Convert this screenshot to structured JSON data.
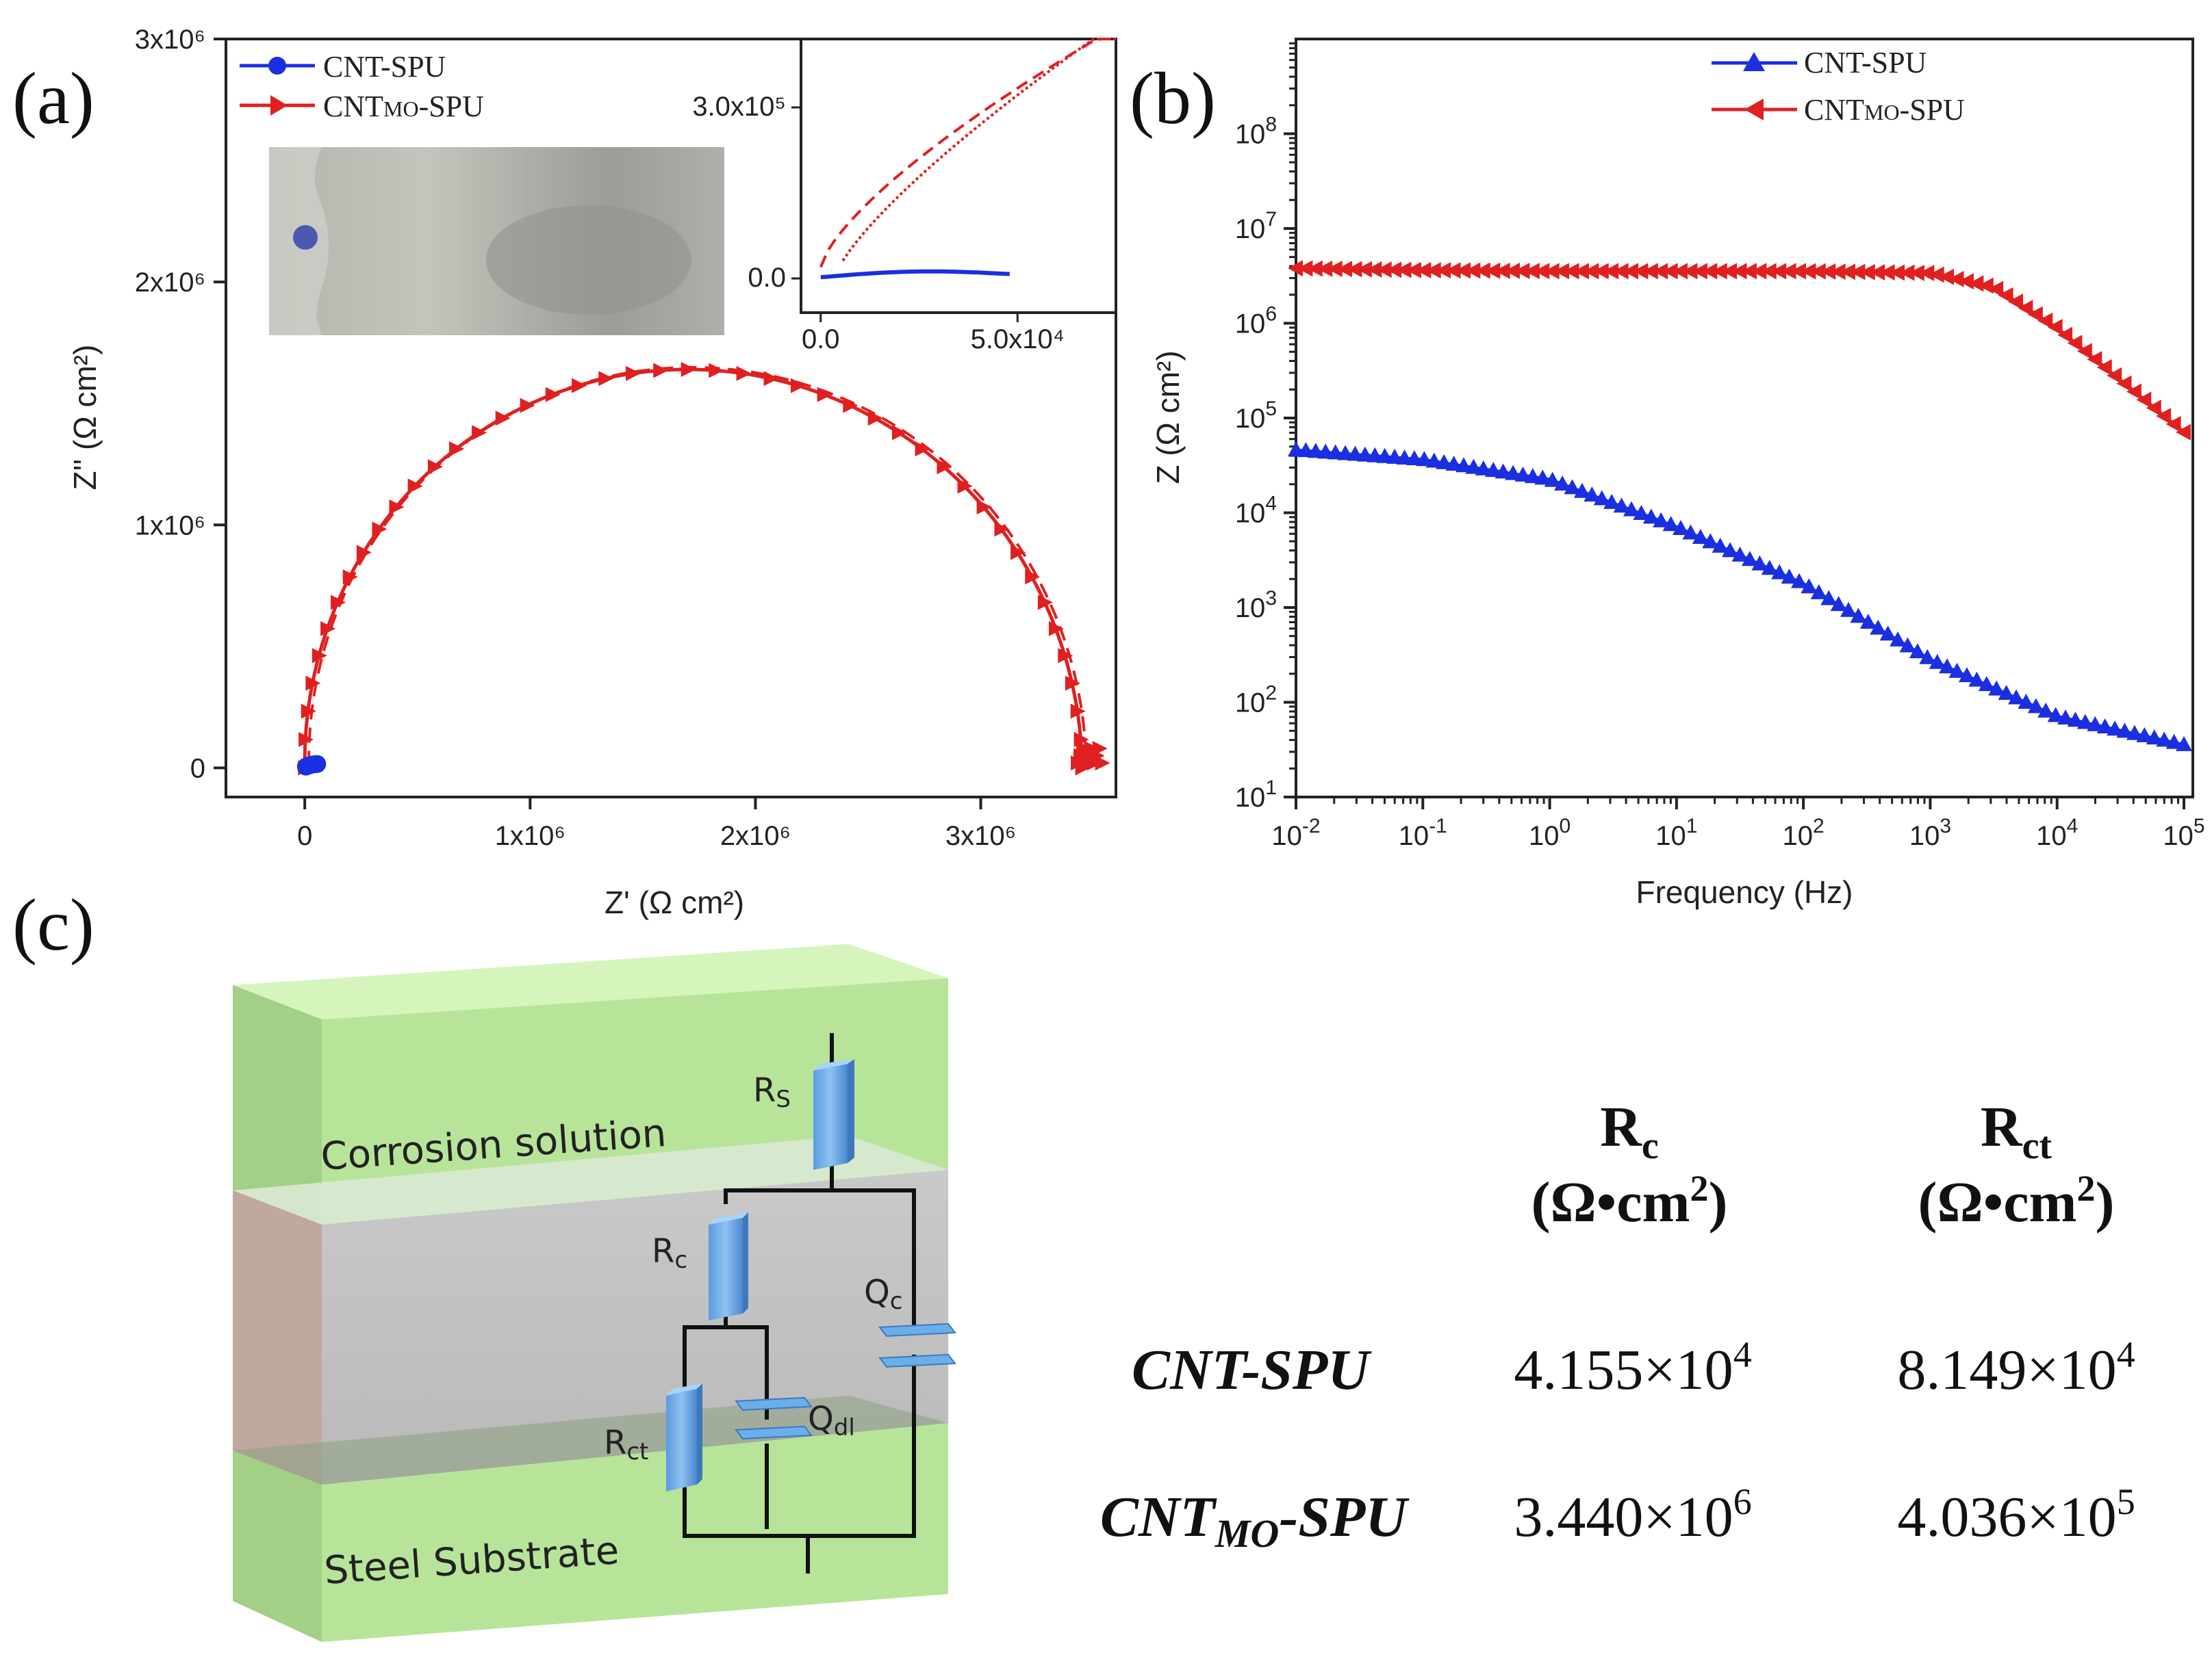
{
  "chart_data": [
    {
      "panel": "(a)",
      "type": "line",
      "xlabel": "Z' (Ω cm²)",
      "ylabel": "Z'' (Ω cm²)",
      "xlim": [
        -350000,
        3600000
      ],
      "ylim": [
        -120000,
        3000000
      ],
      "xticks": [
        {
          "value": 0,
          "label": "0"
        },
        {
          "value": 1000000,
          "label": "1x10⁶"
        },
        {
          "value": 2000000,
          "label": "2x10⁶"
        },
        {
          "value": 3000000,
          "label": "3x10⁶"
        }
      ],
      "yticks": [
        {
          "value": 0,
          "label": "0"
        },
        {
          "value": 1000000,
          "label": "1x10⁶"
        },
        {
          "value": 2000000,
          "label": "2x10⁶"
        },
        {
          "value": 3000000,
          "label": "3x10⁶"
        }
      ],
      "legend": [
        "CNT-SPU",
        "CNTMO-SPU"
      ],
      "series": [
        {
          "name": "CNT-SPU",
          "color": "#1a2fe0",
          "marker": "circle",
          "x": [
            5000,
            15000,
            25000,
            35000,
            45000,
            55000
          ],
          "y": [
            5000,
            9000,
            12000,
            14000,
            15000,
            16000
          ]
        },
        {
          "name": "CNTMO-SPU",
          "color": "#e02020",
          "marker": "triangle-right",
          "semicircle": {
            "x_start": 0,
            "x_end": 3450000,
            "apex_x": 1700000,
            "apex_y": 1640000
          }
        }
      ],
      "inset": {
        "xticks": [
          {
            "value": 0,
            "label": "0.0"
          },
          {
            "value": 50000,
            "label": "5.0x10⁴"
          }
        ],
        "yticks": [
          {
            "value": 0,
            "label": "0.0"
          },
          {
            "value": 300000,
            "label": "3.0x10⁵"
          }
        ],
        "xlim": [
          -5000,
          75000
        ],
        "ylim": [
          -60000,
          420000
        ]
      }
    },
    {
      "panel": "(b)",
      "type": "line",
      "xlabel": "Frequency (Hz)",
      "ylabel": "Z (Ω cm²)",
      "xscale": "log",
      "yscale": "log",
      "xlim_exp": [
        -2,
        5
      ],
      "ylim_exp": [
        1,
        9
      ],
      "xticks": [
        {
          "base": "10",
          "exp": "-2"
        },
        {
          "base": "10",
          "exp": "-1"
        },
        {
          "base": "10",
          "exp": "0"
        },
        {
          "base": "10",
          "exp": "1"
        },
        {
          "base": "10",
          "exp": "2"
        },
        {
          "base": "10",
          "exp": "3"
        },
        {
          "base": "10",
          "exp": "4"
        },
        {
          "base": "10",
          "exp": "5"
        }
      ],
      "yticks": [
        {
          "base": "10",
          "exp": "1"
        },
        {
          "base": "10",
          "exp": "2"
        },
        {
          "base": "10",
          "exp": "3"
        },
        {
          "base": "10",
          "exp": "4"
        },
        {
          "base": "10",
          "exp": "5"
        },
        {
          "base": "10",
          "exp": "6"
        },
        {
          "base": "10",
          "exp": "7"
        },
        {
          "base": "10",
          "exp": "8"
        }
      ],
      "legend": [
        "CNT-SPU",
        "CNTMO-SPU"
      ],
      "series": [
        {
          "name": "CNT-SPU",
          "color": "#1a2fe0",
          "marker": "triangle-up",
          "log_f": [
            -2,
            -1,
            0,
            1,
            2,
            3,
            4,
            5
          ],
          "log_z": [
            4.66,
            4.56,
            4.35,
            3.85,
            3.25,
            2.45,
            1.85,
            1.55
          ]
        },
        {
          "name": "CNTMO-SPU",
          "color": "#e02020",
          "marker": "triangle-left",
          "log_f": [
            -2,
            -1,
            0,
            1,
            2,
            3,
            3.5,
            4,
            5
          ],
          "log_z": [
            6.58,
            6.56,
            6.55,
            6.55,
            6.55,
            6.53,
            6.38,
            5.95,
            4.85
          ]
        }
      ]
    }
  ],
  "figure": {
    "panel_c_label": "(c)",
    "schematic": {
      "layers": [
        "Corrosion solution",
        "Steel Substrate"
      ],
      "elements": [
        {
          "main": "R",
          "sub": "S"
        },
        {
          "main": "R",
          "sub": "c"
        },
        {
          "main": "Q",
          "sub": "c"
        },
        {
          "main": "R",
          "sub": "ct"
        },
        {
          "main": "Q",
          "sub": "dl"
        }
      ]
    },
    "table": {
      "columns": [
        {
          "symbol": "R",
          "sub": "c",
          "unit": "(Ω•cm",
          "unit_sup": "2",
          "unit_close": ")"
        },
        {
          "symbol": "R",
          "sub": "ct",
          "unit": "(Ω•cm",
          "unit_sup": "2",
          "unit_close": ")"
        }
      ],
      "rows": [
        {
          "name": "CNT-SPU",
          "name_sub": "",
          "name_tail": "",
          "values": [
            {
              "mant": "4.155×10",
              "exp": "4"
            },
            {
              "mant": "8.149×10",
              "exp": "4"
            }
          ]
        },
        {
          "name": "CNT",
          "name_sub": "MO",
          "name_tail": "-SPU",
          "values": [
            {
              "mant": "3.440×10",
              "exp": "6"
            },
            {
              "mant": "4.036×10",
              "exp": "5"
            }
          ]
        }
      ]
    }
  }
}
